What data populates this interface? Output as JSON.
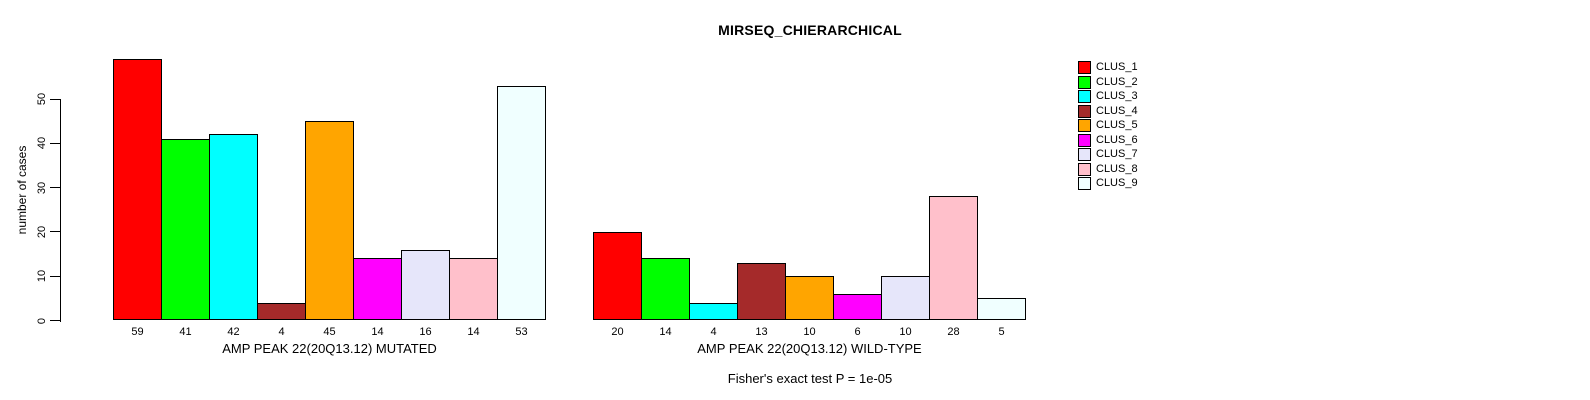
{
  "title": "MIRSEQ_CHIERARCHICAL",
  "chart_data": {
    "type": "bar",
    "title": "MIRSEQ_CHIERARCHICAL",
    "ylabel": "number of cases",
    "xlabel": "",
    "ylim": [
      0,
      60
    ],
    "yticks": [
      0,
      10,
      20,
      30,
      40,
      50
    ],
    "grid": false,
    "bar_value_labels": true,
    "legend": {
      "position": "top-right",
      "entries": [
        {
          "label": "CLUS_1",
          "color": "#FF0000"
        },
        {
          "label": "CLUS_2",
          "color": "#00FF00"
        },
        {
          "label": "CLUS_3",
          "color": "#00FFFF"
        },
        {
          "label": "CLUS_4",
          "color": "#A52A2A"
        },
        {
          "label": "CLUS_5",
          "color": "#FFA500"
        },
        {
          "label": "CLUS_6",
          "color": "#FF00FF"
        },
        {
          "label": "CLUS_7",
          "color": "#E6E6FA"
        },
        {
          "label": "CLUS_8",
          "color": "#FFC0CB"
        },
        {
          "label": "CLUS_9",
          "color": "#F0FFFF"
        }
      ]
    },
    "groups": [
      {
        "xlabel": "AMP PEAK 22(20Q13.12) MUTATED",
        "values": [
          59,
          41,
          42,
          4,
          45,
          14,
          16,
          14,
          53
        ]
      },
      {
        "xlabel": "AMP PEAK 22(20Q13.12) WILD-TYPE",
        "values": [
          20,
          14,
          4,
          13,
          10,
          6,
          10,
          28,
          5
        ]
      }
    ],
    "annotation": "Fisher's exact test P = 1e-05"
  }
}
